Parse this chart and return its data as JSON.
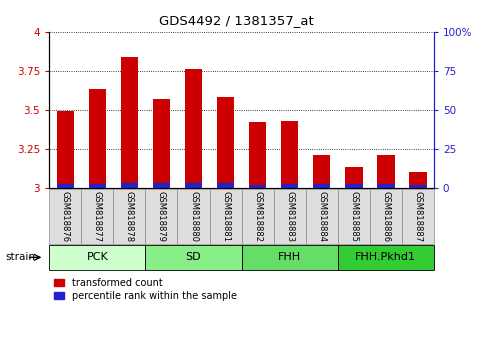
{
  "title": "GDS4492 / 1381357_at",
  "samples": [
    "GSM818876",
    "GSM818877",
    "GSM818878",
    "GSM818879",
    "GSM818880",
    "GSM818881",
    "GSM818882",
    "GSM818883",
    "GSM818884",
    "GSM818885",
    "GSM818886",
    "GSM818887"
  ],
  "red_values": [
    3.49,
    3.63,
    3.84,
    3.57,
    3.76,
    3.58,
    3.42,
    3.43,
    3.21,
    3.13,
    3.21,
    3.1
  ],
  "blue_values": [
    0.025,
    0.025,
    0.03,
    0.03,
    0.03,
    0.03,
    0.02,
    0.025,
    0.025,
    0.025,
    0.025,
    0.02
  ],
  "groups": [
    {
      "label": "PCK",
      "start": 0,
      "end": 3
    },
    {
      "label": "SD",
      "start": 3,
      "end": 6
    },
    {
      "label": "FHH",
      "start": 6,
      "end": 9
    },
    {
      "label": "FHH.Pkhd1",
      "start": 9,
      "end": 12
    }
  ],
  "group_colors": [
    "#ccffcc",
    "#88ee88",
    "#66dd66",
    "#33cc33"
  ],
  "ymin": 3.0,
  "ymax": 4.0,
  "yticks": [
    3.0,
    3.25,
    3.5,
    3.75,
    4.0
  ],
  "ytick_labels": [
    "3",
    "3.25",
    "3.5",
    "3.75",
    "4"
  ],
  "right_yticks": [
    0,
    25,
    50,
    75,
    100
  ],
  "right_ytick_labels": [
    "0",
    "25",
    "50",
    "75",
    "100%"
  ],
  "bar_width": 0.55,
  "red_color": "#cc0000",
  "blue_color": "#2222cc",
  "legend_red": "transformed count",
  "legend_blue": "percentile rank within the sample",
  "tick_label_color": "#cc0000",
  "right_tick_color": "#2222cc",
  "grid_color": "#000000",
  "box_bg_color": "#dddddd",
  "box_border_color": "#888888"
}
